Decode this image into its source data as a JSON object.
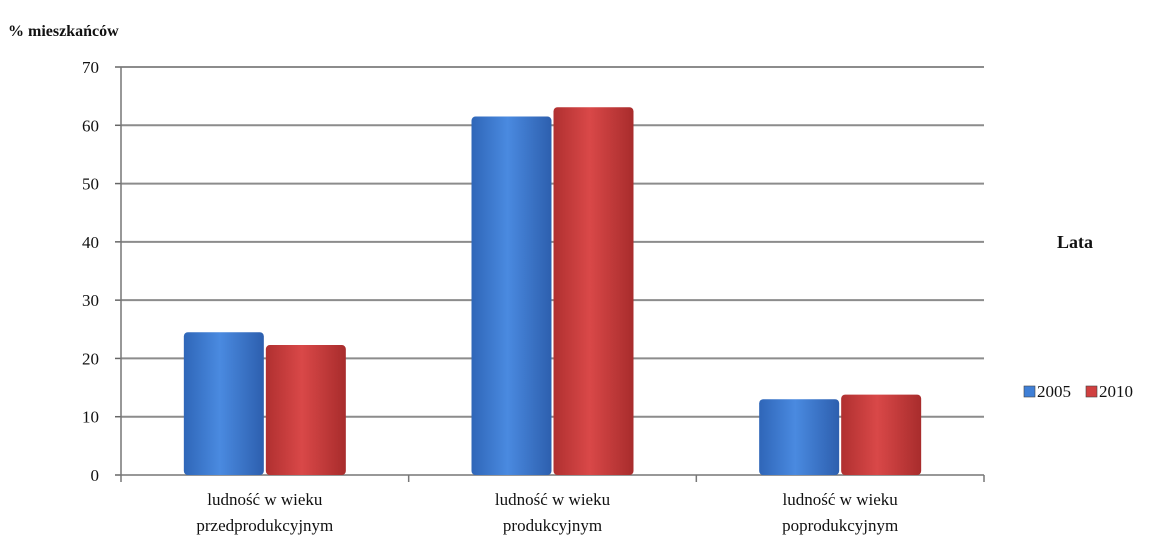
{
  "chart_data": {
    "type": "bar",
    "ylabel": "% mieszkańców",
    "xlabel": "",
    "ylim": [
      0,
      70
    ],
    "yticks": [
      0,
      10,
      20,
      30,
      40,
      50,
      60,
      70
    ],
    "grid": true,
    "categories": [
      [
        "ludność w wieku",
        "przedprodukcyjnym"
      ],
      [
        "ludność w wieku",
        "produkcyjnym"
      ],
      [
        "ludność w wieku",
        "poprodukcyjnym"
      ]
    ],
    "series": [
      {
        "name": "2005",
        "values": [
          24.5,
          61.5,
          13.0
        ],
        "color": "#3f7fd6"
      },
      {
        "name": "2010",
        "values": [
          22.3,
          63.1,
          13.8
        ],
        "color": "#d04040"
      }
    ],
    "legend": {
      "title": "Lata",
      "position": "right"
    }
  }
}
